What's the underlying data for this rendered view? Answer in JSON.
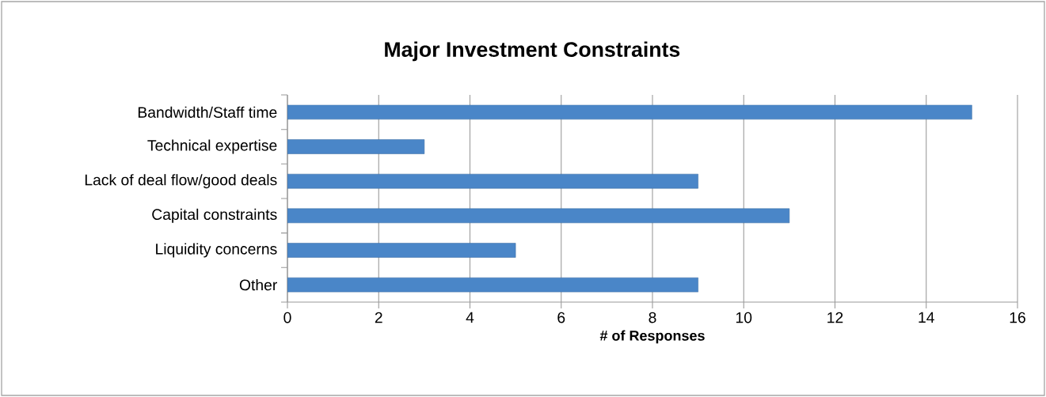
{
  "chart_data": {
    "type": "bar",
    "orientation": "horizontal",
    "title": "Major Investment Constraints",
    "xlabel": "# of Responses",
    "categories": [
      "Bandwidth/Staff time",
      "Technical expertise",
      "Lack of deal flow/good deals",
      "Capital constraints",
      "Liquidity concerns",
      "Other"
    ],
    "values": [
      15,
      3,
      9,
      11,
      5,
      9
    ],
    "color": "#4a86c8",
    "xlim": [
      0,
      16
    ],
    "xticks": [
      0,
      2,
      4,
      6,
      8,
      10,
      12,
      14,
      16
    ],
    "grid": "x"
  }
}
